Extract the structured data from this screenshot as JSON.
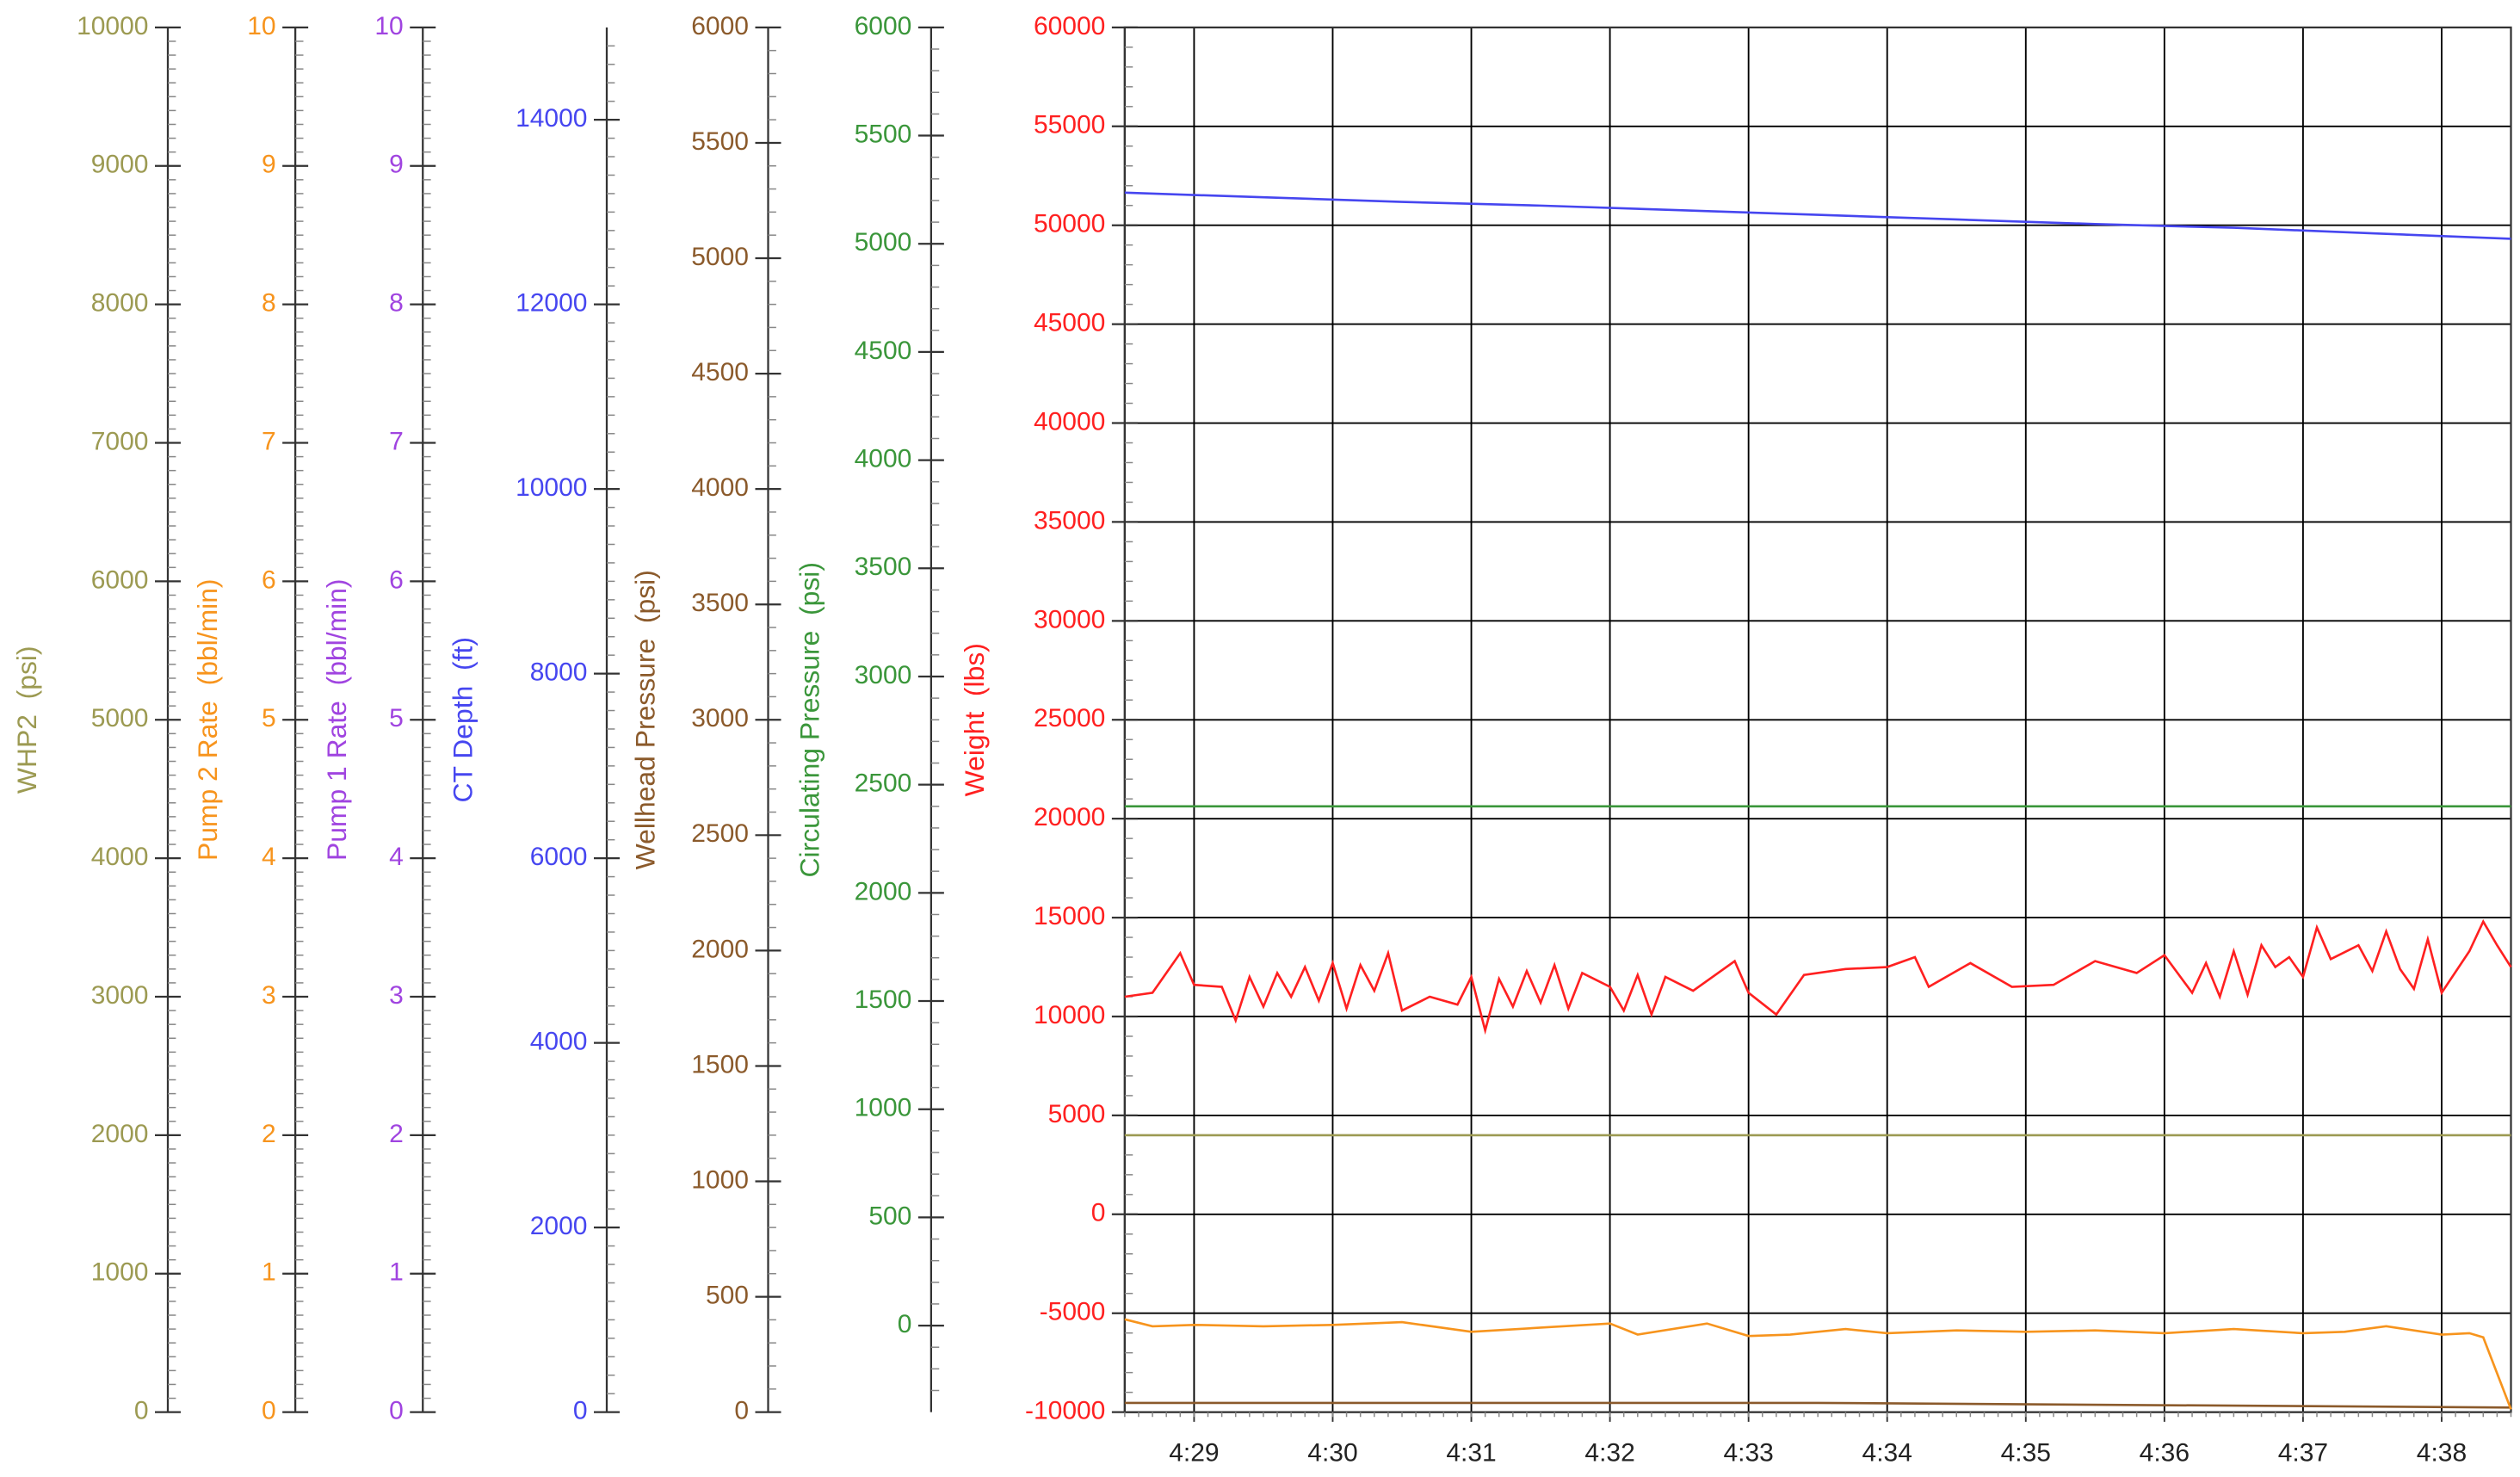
{
  "chart_data": {
    "type": "line",
    "xlim": [
      268.5,
      278.5
    ],
    "xticks": [
      {
        "value": 269,
        "label": "4:29"
      },
      {
        "value": 270,
        "label": "4:30"
      },
      {
        "value": 271,
        "label": "4:31"
      },
      {
        "value": 272,
        "label": "4:32"
      },
      {
        "value": 273,
        "label": "4:33"
      },
      {
        "value": 274,
        "label": "4:34"
      },
      {
        "value": 275,
        "label": "4:35"
      },
      {
        "value": 276,
        "label": "4:36"
      },
      {
        "value": 277,
        "label": "4:37"
      },
      {
        "value": 278,
        "label": "4:38"
      }
    ],
    "grid": true,
    "axes": [
      {
        "label": "WHP2  (psi)",
        "color": "#9c9a52",
        "ylim": [
          0,
          10000
        ],
        "yticks": [
          0,
          1000,
          2000,
          3000,
          4000,
          5000,
          6000,
          7000,
          8000,
          9000,
          10000
        ],
        "minor": 10
      },
      {
        "label": "Pump 2 Rate  (bbl/min)",
        "color": "#f7941d",
        "ylim": [
          0,
          10
        ],
        "yticks": [
          0,
          1,
          2,
          3,
          4,
          5,
          6,
          7,
          8,
          9,
          10
        ],
        "minor": 10
      },
      {
        "label": "Pump 1 Rate  (bbl/min)",
        "color": "#a044e0",
        "ylim": [
          0,
          10
        ],
        "yticks": [
          0,
          1,
          2,
          3,
          4,
          5,
          6,
          7,
          8,
          9,
          10
        ],
        "minor": 10
      },
      {
        "label": "CT Depth  (ft)",
        "color": "#4646f0",
        "ylim": [
          0,
          15000
        ],
        "yticks": [
          0,
          2000,
          4000,
          6000,
          8000,
          10000,
          12000,
          14000
        ],
        "minor": 10
      },
      {
        "label": "Wellhead Pressure  (psi)",
        "color": "#8b5a2b",
        "ylim": [
          0,
          6000
        ],
        "yticks": [
          0,
          500,
          1000,
          1500,
          2000,
          2500,
          3000,
          3500,
          4000,
          4500,
          5000,
          5500,
          6000
        ],
        "minor": 5
      },
      {
        "label": "Circulating Pressure  (psi)",
        "color": "#3a963a",
        "ylim": [
          -400,
          6000
        ],
        "yticks": [
          0,
          500,
          1000,
          1500,
          2000,
          2500,
          3000,
          3500,
          4000,
          4500,
          5000,
          5500,
          6000
        ],
        "minor": 5
      },
      {
        "label": "Weight  (lbs)",
        "color": "#ff2020",
        "ylim": [
          -10000,
          60000
        ],
        "yticks": [
          -10000,
          -5000,
          0,
          5000,
          10000,
          15000,
          20000,
          25000,
          30000,
          35000,
          40000,
          45000,
          50000,
          55000,
          60000
        ],
        "minor": 5
      }
    ],
    "series": [
      {
        "name": "WHP2",
        "axis": 0,
        "color": "#9c9a52",
        "x": [
          268.5,
          278.5
        ],
        "values": [
          2000,
          2000
        ]
      },
      {
        "name": "Wellhead Pressure",
        "axis": 4,
        "color": "#8b5a2b",
        "x": [
          268.5,
          273.5,
          278.5
        ],
        "values": [
          40,
          40,
          20
        ]
      },
      {
        "name": "Circulating Pressure",
        "axis": 5,
        "color": "#3a963a",
        "x": [
          268.5,
          278.5
        ],
        "values": [
          2400,
          2400
        ]
      },
      {
        "name": "CT Depth",
        "axis": 3,
        "color": "#4646f0",
        "x": [
          268.5,
          269.5,
          270.5,
          271.5,
          272.5,
          273.5,
          274.5,
          275.5,
          276.5,
          277.5,
          278.5
        ],
        "values": [
          13210,
          13160,
          13110,
          13070,
          13020,
          12970,
          12920,
          12870,
          12830,
          12770,
          12710
        ]
      },
      {
        "name": "Pump 2 Rate",
        "axis": 1,
        "color": "#f7941d",
        "x": [
          268.5,
          268.7,
          269.0,
          269.5,
          270.0,
          270.5,
          271.0,
          271.5,
          272.0,
          272.2,
          272.7,
          273.0,
          273.3,
          273.7,
          274.0,
          274.5,
          275.0,
          275.5,
          276.0,
          276.5,
          277.0,
          277.3,
          277.6,
          278.0,
          278.2,
          278.3,
          278.5
        ],
        "values": [
          0.67,
          0.62,
          0.63,
          0.62,
          0.63,
          0.65,
          0.58,
          0.61,
          0.64,
          0.56,
          0.64,
          0.55,
          0.56,
          0.6,
          0.57,
          0.59,
          0.58,
          0.59,
          0.57,
          0.6,
          0.57,
          0.58,
          0.62,
          0.56,
          0.57,
          0.54,
          0.02
        ]
      },
      {
        "name": "Weight",
        "axis": 6,
        "color": "#ff2020",
        "x": [
          268.5,
          268.7,
          268.9,
          269.0,
          269.2,
          269.3,
          269.4,
          269.5,
          269.6,
          269.7,
          269.8,
          269.9,
          270.0,
          270.1,
          270.2,
          270.3,
          270.4,
          270.5,
          270.7,
          270.9,
          271.0,
          271.1,
          271.2,
          271.3,
          271.4,
          271.5,
          271.6,
          271.7,
          271.8,
          272.0,
          272.1,
          272.2,
          272.3,
          272.4,
          272.6,
          272.9,
          273.0,
          273.2,
          273.4,
          273.7,
          274.0,
          274.2,
          274.3,
          274.6,
          274.9,
          275.2,
          275.5,
          275.8,
          276.0,
          276.2,
          276.3,
          276.4,
          276.5,
          276.6,
          276.7,
          276.8,
          276.9,
          277.0,
          277.1,
          277.2,
          277.4,
          277.5,
          277.6,
          277.7,
          277.8,
          277.9,
          278.0,
          278.2,
          278.3,
          278.4,
          278.5
        ],
        "values": [
          11000,
          11200,
          13200,
          11600,
          11500,
          9800,
          12000,
          10500,
          12200,
          11000,
          12500,
          10800,
          12700,
          10400,
          12600,
          11300,
          13200,
          10300,
          11000,
          10600,
          12000,
          9300,
          11900,
          10500,
          12300,
          10700,
          12600,
          10400,
          12200,
          11500,
          10300,
          12100,
          10100,
          12000,
          11300,
          12800,
          11200,
          10100,
          12100,
          12400,
          12500,
          13000,
          11500,
          12700,
          11500,
          11600,
          12800,
          12200,
          13100,
          11200,
          12700,
          11000,
          13300,
          11100,
          13600,
          12500,
          13000,
          12000,
          14500,
          12900,
          13600,
          12300,
          14300,
          12400,
          11400,
          13900,
          11200,
          13300,
          14800,
          13600,
          12500
        ]
      }
    ]
  }
}
